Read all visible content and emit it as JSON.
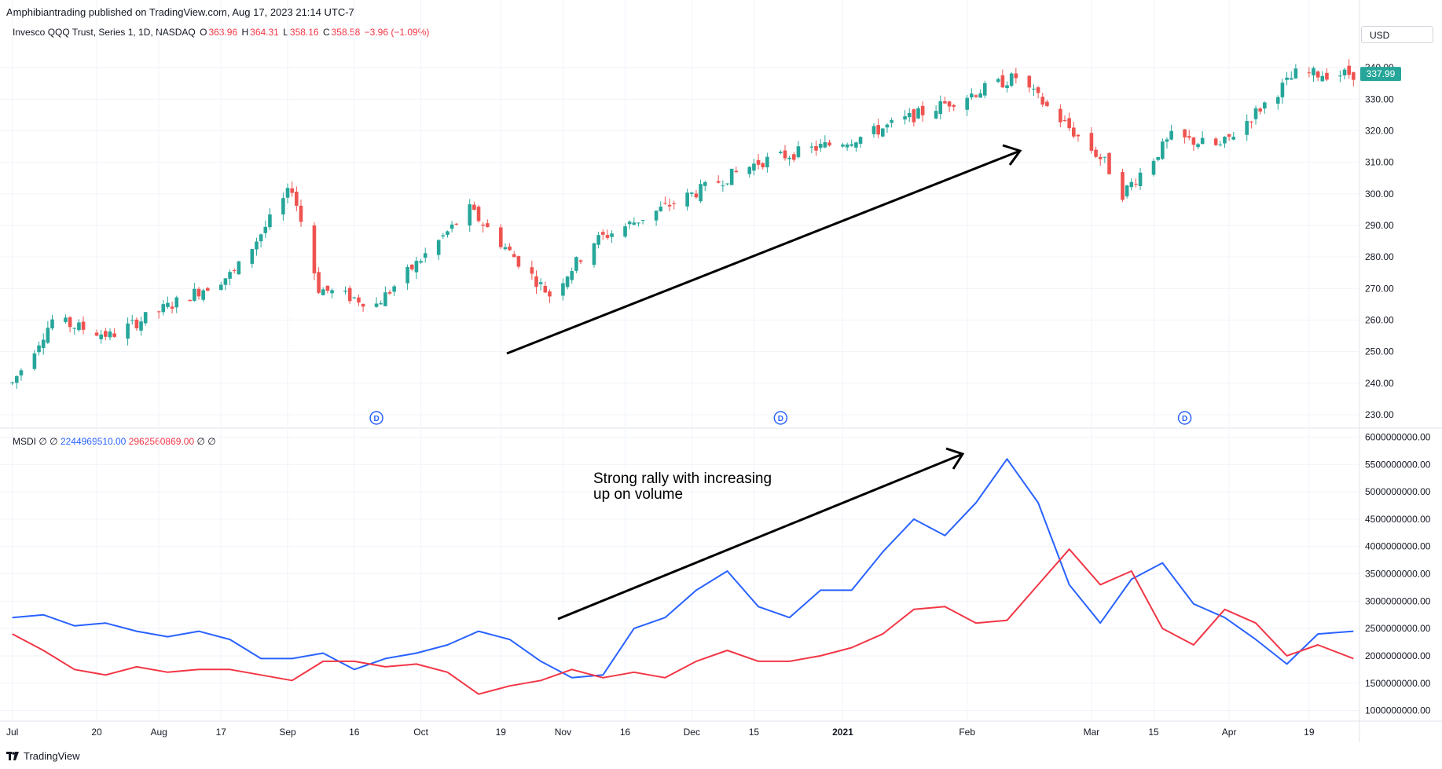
{
  "header": {
    "publisher": "Amphibiantrading published on TradingView.com, Aug 17, 2023 21:14 UTC-7",
    "symbol": "Invesco QQQ Trust, Series 1, 1D, NASDAQ",
    "open_label": "O",
    "open_value": "363.96",
    "high_label": "H",
    "high_value": "364.31",
    "low_label": "L",
    "low_value": "358.16",
    "close_label": "C",
    "close_value": "358.58",
    "change": "−3.96 (−1.09%)",
    "currency": "USD"
  },
  "indicator": {
    "name": "MSDI",
    "params": "∅  ∅",
    "blue_value": "2244969510.00",
    "red_value": "2962560869.00",
    "trailing": "∅  ∅"
  },
  "annotation": {
    "line1": "Strong rally with increasing",
    "line2": "up on volume"
  },
  "footer": {
    "brand": "TradingView"
  },
  "colors": {
    "up": "#26a69a",
    "down": "#ef5350",
    "blue": "#2962ff",
    "red": "#f23645",
    "grid": "#f0f3fa",
    "price_tag": "#26a69a"
  },
  "icons": {
    "dividend": "dividend-marker-icon",
    "logo": "tradingview-logo-icon"
  },
  "chart_data": [
    {
      "type": "candlestick",
      "title": "Invesco QQQ Trust, Series 1, 1D, NASDAQ",
      "y_ticks": [
        230,
        240,
        250,
        260,
        270,
        280,
        290,
        300,
        310,
        320,
        330,
        340
      ],
      "y_tick_labels": [
        "230.00",
        "240.00",
        "250.00",
        "260.00",
        "270.00",
        "280.00",
        "290.00",
        "300.00",
        "310.00",
        "320.00",
        "330.00",
        "340.00"
      ],
      "ylim": [
        227,
        346
      ],
      "last_price_label": "337.99",
      "last_price": 337.99,
      "dividend_markers": [
        "2020-09-21",
        "2020-12-21",
        "2021-03-22"
      ],
      "x_tick_labels": [
        "Jul",
        "20",
        "Aug",
        "17",
        "Sep",
        "16",
        "Oct",
        "19",
        "Nov",
        "16",
        "Dec",
        "15",
        "2021",
        "Feb",
        "Mar",
        "15",
        "Apr",
        "19"
      ],
      "key_points": [
        {
          "date": "2020-07-01",
          "close": 240
        },
        {
          "date": "2020-07-10",
          "close": 260
        },
        {
          "date": "2020-07-23",
          "close": 255
        },
        {
          "date": "2020-08-20",
          "close": 275
        },
        {
          "date": "2020-09-02",
          "close": 302
        },
        {
          "date": "2020-09-08",
          "close": 270
        },
        {
          "date": "2020-09-21",
          "close": 265
        },
        {
          "date": "2020-10-12",
          "close": 295
        },
        {
          "date": "2020-10-30",
          "close": 268
        },
        {
          "date": "2020-11-09",
          "close": 285
        },
        {
          "date": "2020-12-16",
          "close": 310
        },
        {
          "date": "2021-01-08",
          "close": 318
        },
        {
          "date": "2021-01-26",
          "close": 328
        },
        {
          "date": "2021-02-12",
          "close": 337
        },
        {
          "date": "2021-03-04",
          "close": 310
        },
        {
          "date": "2021-03-08",
          "close": 300
        },
        {
          "date": "2021-03-19",
          "close": 318
        },
        {
          "date": "2021-03-30",
          "close": 315
        },
        {
          "date": "2021-04-16",
          "close": 338
        },
        {
          "date": "2021-04-29",
          "close": 338
        }
      ]
    },
    {
      "type": "line",
      "title": "MSDI",
      "y_ticks": [
        1000000000,
        1500000000,
        2000000000,
        2500000000,
        3000000000,
        3500000000,
        4000000000,
        4500000000,
        5000000000,
        5500000000,
        6000000000
      ],
      "y_tick_labels": [
        "1000000000.00",
        "1500000000.00",
        "2000000000.00",
        "2500000000.00",
        "3000000000.00",
        "3500000000.00",
        "4000000000.00",
        "4500000000.00",
        "5000000000.00",
        "5500000000.00",
        "6000000000.00"
      ],
      "ylim": [
        850000000,
        6050000000
      ],
      "series": [
        {
          "color": "#2962ff",
          "points": [
            [
              "2020-07-01",
              2700000000
            ],
            [
              "2020-07-08",
              2750000000
            ],
            [
              "2020-07-15",
              2550000000
            ],
            [
              "2020-07-22",
              2600000000
            ],
            [
              "2020-07-29",
              2450000000
            ],
            [
              "2020-08-05",
              2350000000
            ],
            [
              "2020-08-12",
              2450000000
            ],
            [
              "2020-08-19",
              2300000000
            ],
            [
              "2020-08-26",
              1950000000
            ],
            [
              "2020-09-02",
              1950000000
            ],
            [
              "2020-09-09",
              2050000000
            ],
            [
              "2020-09-16",
              1750000000
            ],
            [
              "2020-09-23",
              1950000000
            ],
            [
              "2020-09-30",
              2050000000
            ],
            [
              "2020-10-07",
              2200000000
            ],
            [
              "2020-10-14",
              2450000000
            ],
            [
              "2020-10-21",
              2300000000
            ],
            [
              "2020-10-28",
              1900000000
            ],
            [
              "2020-11-04",
              1600000000
            ],
            [
              "2020-11-11",
              1650000000
            ],
            [
              "2020-11-18",
              2500000000
            ],
            [
              "2020-11-25",
              2700000000
            ],
            [
              "2020-12-02",
              3200000000
            ],
            [
              "2020-12-09",
              3550000000
            ],
            [
              "2020-12-16",
              2900000000
            ],
            [
              "2020-12-23",
              2700000000
            ],
            [
              "2020-12-30",
              3200000000
            ],
            [
              "2021-01-06",
              3200000000
            ],
            [
              "2021-01-13",
              3900000000
            ],
            [
              "2021-01-20",
              4500000000
            ],
            [
              "2021-01-27",
              4200000000
            ],
            [
              "2021-02-03",
              4800000000
            ],
            [
              "2021-02-10",
              5600000000
            ],
            [
              "2021-02-17",
              4800000000
            ],
            [
              "2021-02-24",
              3300000000
            ],
            [
              "2021-03-03",
              2600000000
            ],
            [
              "2021-03-10",
              3400000000
            ],
            [
              "2021-03-17",
              3700000000
            ],
            [
              "2021-03-24",
              2950000000
            ],
            [
              "2021-03-31",
              2700000000
            ],
            [
              "2021-04-07",
              2300000000
            ],
            [
              "2021-04-14",
              1850000000
            ],
            [
              "2021-04-21",
              2400000000
            ],
            [
              "2021-04-29",
              2450000000
            ]
          ]
        },
        {
          "color": "#f23645",
          "points": [
            [
              "2020-07-01",
              2400000000
            ],
            [
              "2020-07-08",
              2100000000
            ],
            [
              "2020-07-15",
              1750000000
            ],
            [
              "2020-07-22",
              1650000000
            ],
            [
              "2020-07-29",
              1800000000
            ],
            [
              "2020-08-05",
              1700000000
            ],
            [
              "2020-08-12",
              1750000000
            ],
            [
              "2020-08-19",
              1750000000
            ],
            [
              "2020-08-26",
              1650000000
            ],
            [
              "2020-09-02",
              1550000000
            ],
            [
              "2020-09-09",
              1900000000
            ],
            [
              "2020-09-16",
              1900000000
            ],
            [
              "2020-09-23",
              1800000000
            ],
            [
              "2020-09-30",
              1850000000
            ],
            [
              "2020-10-07",
              1700000000
            ],
            [
              "2020-10-14",
              1300000000
            ],
            [
              "2020-10-21",
              1450000000
            ],
            [
              "2020-10-28",
              1550000000
            ],
            [
              "2020-11-04",
              1750000000
            ],
            [
              "2020-11-11",
              1600000000
            ],
            [
              "2020-11-18",
              1700000000
            ],
            [
              "2020-11-25",
              1600000000
            ],
            [
              "2020-12-02",
              1900000000
            ],
            [
              "2020-12-09",
              2100000000
            ],
            [
              "2020-12-16",
              1900000000
            ],
            [
              "2020-12-23",
              1900000000
            ],
            [
              "2020-12-30",
              2000000000
            ],
            [
              "2021-01-06",
              2150000000
            ],
            [
              "2021-01-13",
              2400000000
            ],
            [
              "2021-01-20",
              2850000000
            ],
            [
              "2021-01-27",
              2900000000
            ],
            [
              "2021-02-03",
              2600000000
            ],
            [
              "2021-02-10",
              2650000000
            ],
            [
              "2021-02-17",
              3300000000
            ],
            [
              "2021-02-24",
              3950000000
            ],
            [
              "2021-03-03",
              3300000000
            ],
            [
              "2021-03-10",
              3550000000
            ],
            [
              "2021-03-17",
              2500000000
            ],
            [
              "2021-03-24",
              2200000000
            ],
            [
              "2021-03-31",
              2850000000
            ],
            [
              "2021-04-07",
              2600000000
            ],
            [
              "2021-04-14",
              2000000000
            ],
            [
              "2021-04-21",
              2200000000
            ],
            [
              "2021-04-29",
              1950000000
            ]
          ]
        }
      ]
    }
  ]
}
